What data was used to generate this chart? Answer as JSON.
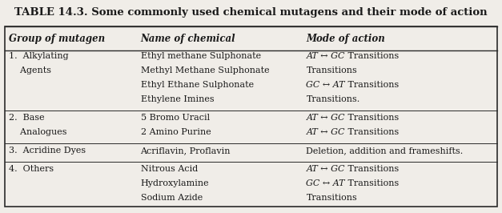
{
  "title": "TABLE 14.3. Some commonly used chemical mutagens and their mode of action",
  "col_headers": [
    "Group of mutagen",
    "Name of chemical",
    "Mode of action"
  ],
  "background_color": "#f0ede8",
  "text_color": "#1a1a1a",
  "title_fontsize": 9.5,
  "header_fontsize": 8.5,
  "body_fontsize": 8.0,
  "rows": [
    {
      "group": [
        "1.  Alkylating",
        "    Agents",
        "",
        ""
      ],
      "chemicals": [
        "Ethyl methane Sulphonate",
        "Methyl Methane Sulphonate",
        "Ethyl Ethane Sulphonate",
        "Ethylene Imines"
      ],
      "modes": [
        {
          "italic": "AT ↔ GC",
          "normal": " Transitions"
        },
        {
          "italic": "",
          "normal": "Transitions"
        },
        {
          "italic": "GC ↔ AT",
          "normal": " Transitions"
        },
        {
          "italic": "",
          "normal": "Transitions."
        }
      ]
    },
    {
      "group": [
        "2.  Base",
        "    Analogues"
      ],
      "chemicals": [
        "5 Bromo Uracil",
        "2 Amino Purine"
      ],
      "modes": [
        {
          "italic": "AT ↔ GC",
          "normal": " Transitions"
        },
        {
          "italic": "AT ↔ GC",
          "normal": " Transitions"
        }
      ]
    },
    {
      "group": [
        "3.  Acridine Dyes"
      ],
      "chemicals": [
        "Acriflavin, Proflavin"
      ],
      "modes": [
        {
          "italic": "",
          "normal": "Deletion, addition and frameshifts."
        }
      ]
    },
    {
      "group": [
        "4.  Others",
        "",
        ""
      ],
      "chemicals": [
        "Nitrous Acid",
        "Hydroxylamine",
        "Sodium Azide"
      ],
      "modes": [
        {
          "italic": "AT ↔ GC",
          "normal": " Transitions"
        },
        {
          "italic": "GC ↔ AT",
          "normal": " Transitions"
        },
        {
          "italic": "",
          "normal": "Transitions"
        }
      ]
    }
  ]
}
